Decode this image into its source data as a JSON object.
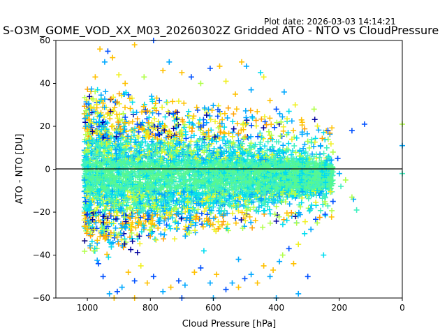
{
  "plot_date": "Plot date: 2026-03-03 14:14:21",
  "chart_data": {
    "type": "scatter",
    "title": "S-O3M_GOME_VOD_XX_M03_20260302Z Gridded ATO - NTO vs CloudPressure",
    "xlabel": "Cloud Pressure [hPa]",
    "ylabel": "ATO - NTO [DU]",
    "xlim": [
      1100,
      0
    ],
    "ylim": [
      -60,
      60
    ],
    "x_ticks": [
      1000,
      800,
      600,
      400,
      200,
      0
    ],
    "y_ticks": [
      -60,
      -40,
      -20,
      0,
      20,
      40,
      60
    ],
    "grid": false,
    "marker": "+",
    "reference_line_y": 0,
    "palette": [
      "#00009e",
      "#0050ff",
      "#00a8ff",
      "#00dcf0",
      "#40f0c0",
      "#58f890",
      "#b0ff48",
      "#f0f020",
      "#ffc000",
      "#ffa000"
    ],
    "points": [
      [
        1005,
        20
      ],
      [
        1000,
        25
      ],
      [
        990,
        29
      ],
      [
        975,
        43
      ],
      [
        960,
        56
      ],
      [
        945,
        50
      ],
      [
        935,
        55
      ],
      [
        920,
        52
      ],
      [
        900,
        44
      ],
      [
        880,
        40
      ],
      [
        850,
        58
      ],
      [
        820,
        43
      ],
      [
        790,
        60
      ],
      [
        760,
        46
      ],
      [
        740,
        50
      ],
      [
        700,
        45
      ],
      [
        670,
        43
      ],
      [
        640,
        40
      ],
      [
        610,
        47
      ],
      [
        580,
        48
      ],
      [
        560,
        41
      ],
      [
        530,
        35
      ],
      [
        510,
        50
      ],
      [
        495,
        48
      ],
      [
        480,
        37
      ],
      [
        450,
        45
      ],
      [
        440,
        43
      ],
      [
        420,
        32
      ],
      [
        400,
        28
      ],
      [
        385,
        22
      ],
      [
        375,
        36
      ],
      [
        360,
        27
      ],
      [
        340,
        30
      ],
      [
        320,
        23
      ],
      [
        300,
        13
      ],
      [
        280,
        28
      ],
      [
        260,
        11
      ],
      [
        240,
        10
      ],
      [
        220,
        8
      ],
      [
        205,
        5
      ],
      [
        200,
        -2
      ],
      [
        195,
        -8
      ],
      [
        180,
        -5
      ],
      [
        160,
        18
      ],
      [
        155,
        -14
      ],
      [
        145,
        -19
      ],
      [
        120,
        21
      ],
      [
        0,
        21
      ],
      [
        0,
        11
      ],
      [
        0,
        -2
      ],
      [
        160,
        -13
      ],
      [
        220,
        -15
      ],
      [
        245,
        -21
      ],
      [
        270,
        -25
      ],
      [
        290,
        -28
      ],
      [
        310,
        -30
      ],
      [
        330,
        -35
      ],
      [
        345,
        -44
      ],
      [
        360,
        -37
      ],
      [
        380,
        -40
      ],
      [
        390,
        -43
      ],
      [
        410,
        -47
      ],
      [
        420,
        -50
      ],
      [
        440,
        -45
      ],
      [
        460,
        -53
      ],
      [
        480,
        -49
      ],
      [
        500,
        -51
      ],
      [
        520,
        -55
      ],
      [
        540,
        -53
      ],
      [
        560,
        -56
      ],
      [
        590,
        -49
      ],
      [
        610,
        -53
      ],
      [
        640,
        -46
      ],
      [
        660,
        -48
      ],
      [
        690,
        -54
      ],
      [
        710,
        -52
      ],
      [
        735,
        -55
      ],
      [
        760,
        -57
      ],
      [
        790,
        -50
      ],
      [
        810,
        -53
      ],
      [
        830,
        -45
      ],
      [
        850,
        -52
      ],
      [
        870,
        -48
      ],
      [
        890,
        -55
      ],
      [
        905,
        -57
      ],
      [
        915,
        -60
      ],
      [
        930,
        -58
      ],
      [
        950,
        -50
      ],
      [
        965,
        -44
      ],
      [
        980,
        -38
      ],
      [
        995,
        -25
      ],
      [
        1005,
        -15
      ],
      [
        1010,
        -5
      ],
      [
        1012,
        2
      ],
      [
        1008,
        8
      ],
      [
        330,
        -58
      ],
      [
        300,
        -50
      ],
      [
        250,
        -40
      ],
      [
        400,
        -60
      ],
      [
        700,
        -60
      ],
      [
        850,
        -60
      ],
      [
        600,
        -60
      ],
      [
        520,
        -42
      ],
      [
        630,
        -38
      ]
    ]
  }
}
